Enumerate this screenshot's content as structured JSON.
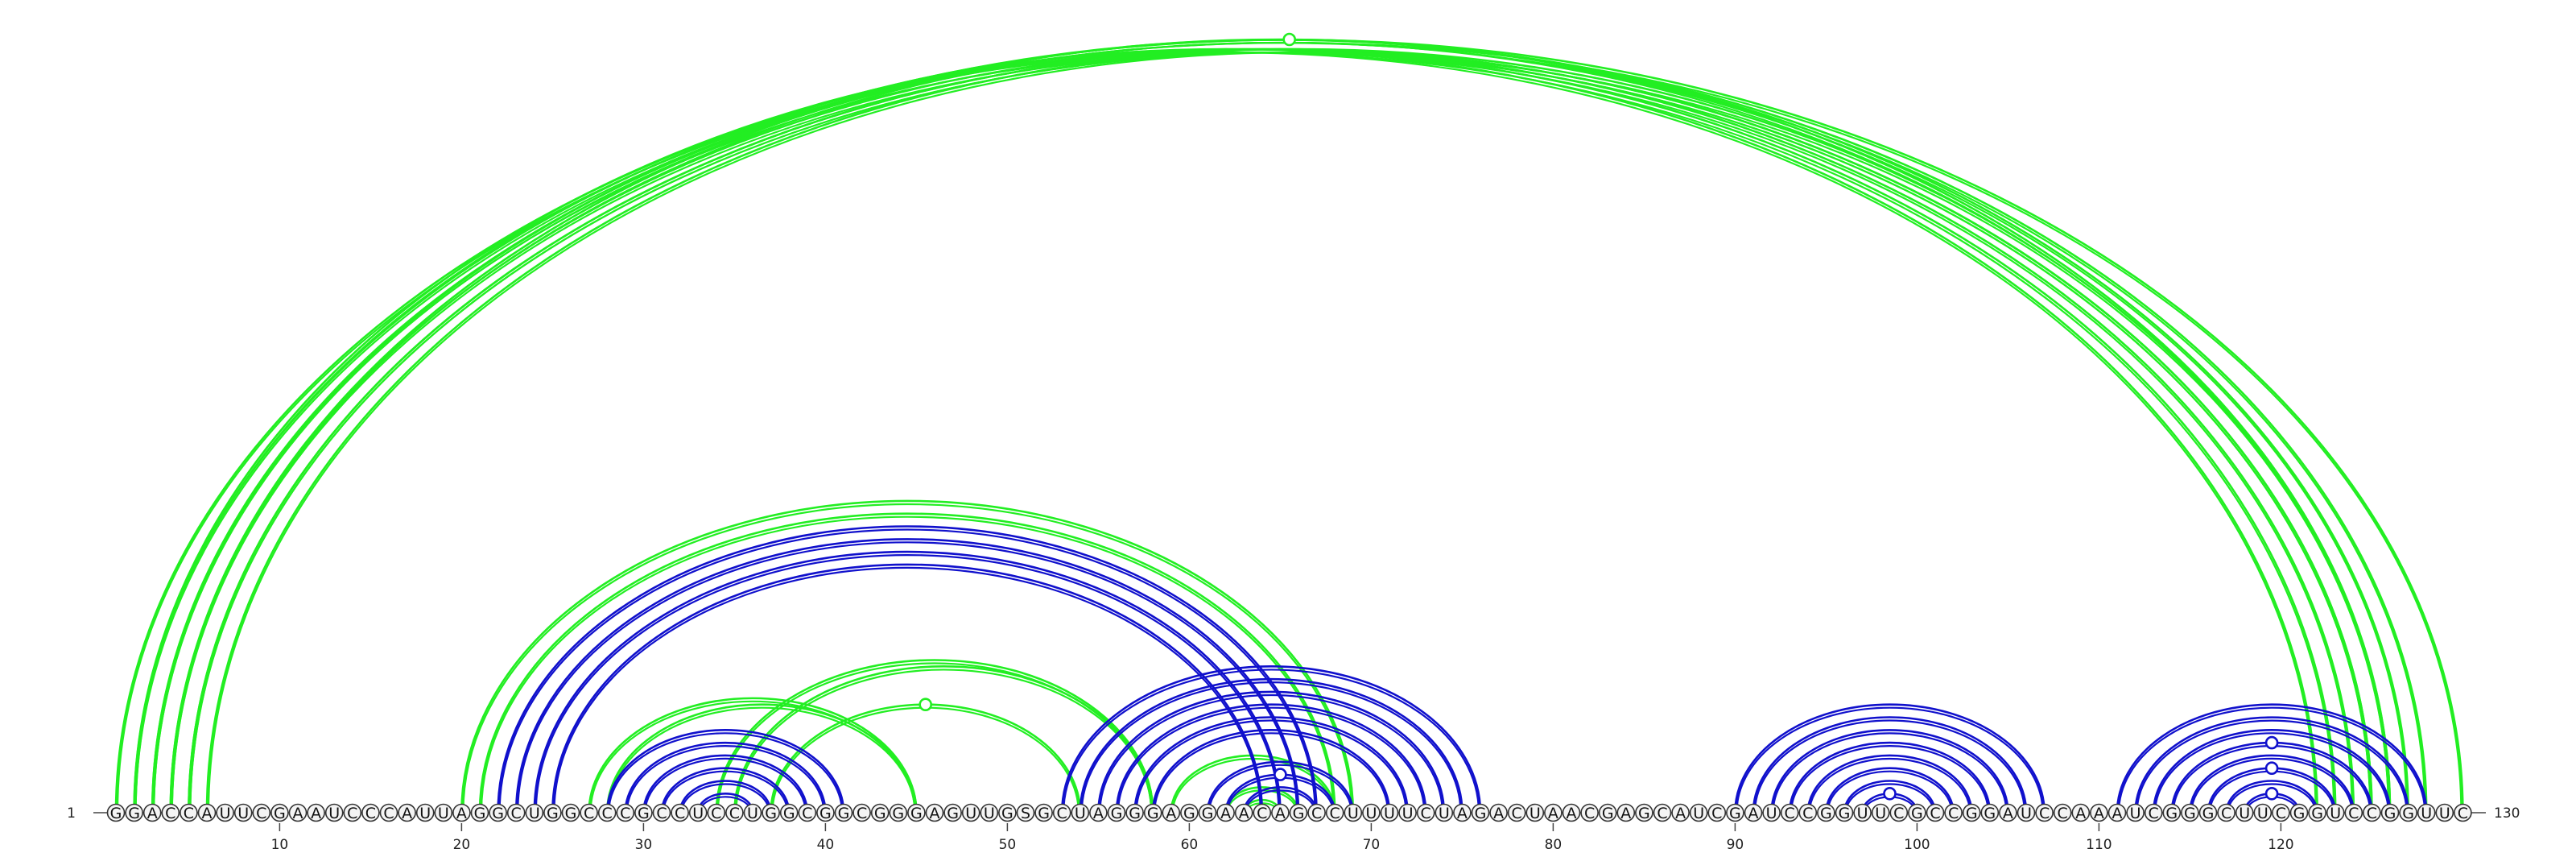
{
  "chart_data": {
    "type": "arc-diagram",
    "sequence": "GGACCAUUCGAAUCCCAUUAGGCUGGCCCGCCUCCUGGCGGCGGGAGUUGSGCUAGGGAGGAACAGCCUUUUCUAGACUAACGAGCAUCGAUCCGGUUCGCCGGAUCCAAAUCGGGCUUCGGUCCGGUUC",
    "length": 130,
    "start_label": "1",
    "end_label": "130",
    "start_index": "1",
    "end_index": "130",
    "position_ticks": [
      "10",
      "20",
      "30",
      "40",
      "50",
      "60",
      "70",
      "80",
      "90",
      "100",
      "110",
      "120"
    ],
    "colors": {
      "green": "#22ee22",
      "blue": "#1010cc"
    },
    "series": [
      {
        "name": "green",
        "pairs": [
          [
            1,
            130
          ],
          [
            2,
            128
          ],
          [
            3,
            127
          ],
          [
            4,
            126
          ],
          [
            5,
            125
          ],
          [
            20,
            69
          ],
          [
            21,
            68
          ],
          [
            27,
            45
          ],
          [
            28,
            45
          ],
          [
            34,
            58
          ],
          [
            35,
            58
          ],
          [
            37,
            54
          ],
          [
            62,
            66
          ],
          [
            63,
            65
          ],
          [
            59,
            68
          ],
          [
            2,
            122
          ],
          [
            3,
            123
          ],
          [
            4,
            124
          ],
          [
            5,
            125
          ],
          [
            6,
            126
          ]
        ]
      },
      {
        "name": "blue",
        "pairs": [
          [
            22,
            67
          ],
          [
            23,
            66
          ],
          [
            24,
            65
          ],
          [
            25,
            64
          ],
          [
            28,
            41
          ],
          [
            29,
            40
          ],
          [
            30,
            39
          ],
          [
            31,
            38
          ],
          [
            32,
            37
          ],
          [
            33,
            36
          ],
          [
            53,
            76
          ],
          [
            54,
            75
          ],
          [
            55,
            74
          ],
          [
            56,
            73
          ],
          [
            57,
            72
          ],
          [
            58,
            71
          ],
          [
            61,
            69
          ],
          [
            62,
            68
          ],
          [
            63,
            67
          ],
          [
            90,
            107
          ],
          [
            91,
            106
          ],
          [
            92,
            105
          ],
          [
            93,
            104
          ],
          [
            94,
            103
          ],
          [
            95,
            102
          ],
          [
            96,
            101
          ],
          [
            97,
            100
          ],
          [
            111,
            128
          ],
          [
            112,
            127
          ],
          [
            113,
            126
          ],
          [
            114,
            125
          ],
          [
            115,
            124
          ],
          [
            116,
            123
          ],
          [
            117,
            122
          ],
          [
            118,
            121
          ]
        ]
      }
    ],
    "markers": [
      {
        "series": "green",
        "at_pair": [
          1,
          130
        ]
      },
      {
        "series": "green",
        "at_pair": [
          37,
          54
        ]
      },
      {
        "series": "blue",
        "at_pair": [
          62,
          68
        ]
      },
      {
        "series": "blue",
        "at_pair": [
          97,
          100
        ]
      },
      {
        "series": "blue",
        "at_pair": [
          114,
          125
        ]
      },
      {
        "series": "blue",
        "at_pair": [
          116,
          123
        ]
      },
      {
        "series": "blue",
        "at_pair": [
          118,
          121
        ]
      }
    ]
  }
}
